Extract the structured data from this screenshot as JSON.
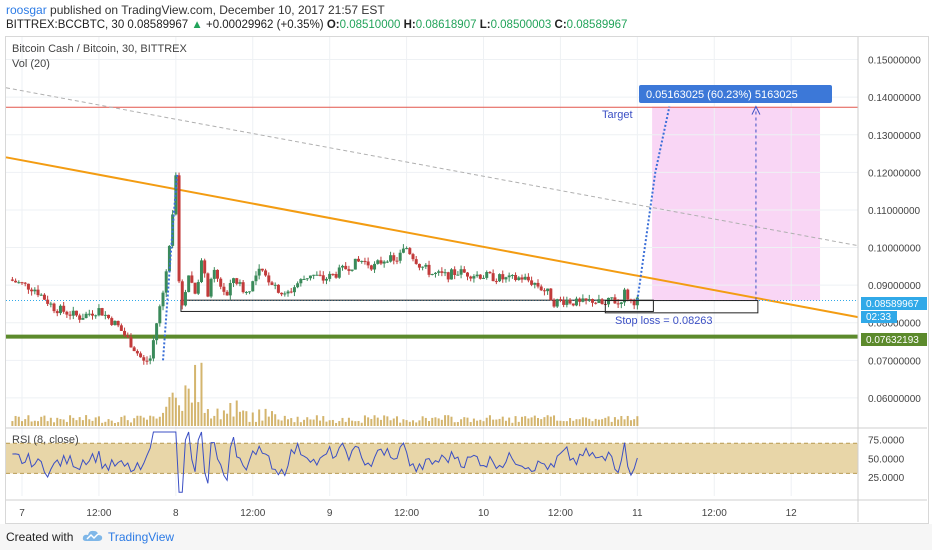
{
  "header": {
    "author": "roosgar",
    "published_text": "published on TradingView.com, December 10, 2017 21:57 EST",
    "symbol": "BITTREX:BCCBTC, 30",
    "last": "0.08589967",
    "change": "+0.00029962 (+0.35%)",
    "o_label": "O:",
    "o_val": "0.08510000",
    "h_label": "H:",
    "h_val": "0.08618907",
    "l_label": "L:",
    "l_val": "0.08500003",
    "c_label": "C:",
    "c_val": "0.08589967"
  },
  "footer": {
    "created_with": "Created with",
    "brand": "TradingView"
  },
  "chart_data": [
    {
      "type": "candlestick",
      "title": "Bitcoin Cash / Bitcoin, 30, BITTREX",
      "indicator": "Vol (20)",
      "y_ticks": [
        "0.15000000",
        "0.14000000",
        "0.13000000",
        "0.12000000",
        "0.11000000",
        "0.10000000",
        "0.09000000",
        "0.08000000",
        "0.07000000",
        "0.06000000"
      ],
      "y_tick_values": [
        0.15,
        0.14,
        0.13,
        0.12,
        0.11,
        0.1,
        0.09,
        0.08,
        0.07,
        0.06
      ],
      "ylim": [
        0.052,
        0.156
      ],
      "x_ticks": [
        "7",
        "12:00",
        "8",
        "12:00",
        "9",
        "12:00",
        "10",
        "12:00",
        "11",
        "12:00",
        "12"
      ],
      "x_tick_times": [
        0,
        12,
        24,
        36,
        48,
        60,
        72,
        84,
        96,
        108,
        120
      ],
      "x_unit": "hours since Dec 7 00:00",
      "current_price": "0.08589967",
      "countdown": "02:33",
      "support_price": "0.07632193",
      "resistance_price": 0.1373,
      "stop_loss_label": "Stop loss = 0.08263",
      "target_label": "Target",
      "projection_label": "0.05163025 (60.23%) 5163025",
      "price_path": [
        [
          -2,
          0.0915
        ],
        [
          2,
          0.089
        ],
        [
          5,
          0.084
        ],
        [
          9,
          0.0815
        ],
        [
          12,
          0.0835
        ],
        [
          15,
          0.079
        ],
        [
          17,
          0.0745
        ],
        [
          19,
          0.0695
        ],
        [
          20,
          0.0705
        ],
        [
          21,
          0.08
        ],
        [
          22,
          0.088
        ],
        [
          23,
          0.1
        ],
        [
          24,
          0.12
        ],
        [
          24.5,
          0.09
        ],
        [
          25,
          0.085
        ],
        [
          26,
          0.093
        ],
        [
          27,
          0.088
        ],
        [
          28,
          0.096
        ],
        [
          29,
          0.088
        ],
        [
          30,
          0.093
        ],
        [
          32,
          0.087
        ],
        [
          33,
          0.092
        ],
        [
          35,
          0.088
        ],
        [
          37,
          0.0935
        ],
        [
          39,
          0.091
        ],
        [
          41,
          0.087
        ],
        [
          43,
          0.0905
        ],
        [
          45,
          0.093
        ],
        [
          47,
          0.0915
        ],
        [
          49,
          0.093
        ],
        [
          51,
          0.095
        ],
        [
          53,
          0.0965
        ],
        [
          55,
          0.095
        ],
        [
          57,
          0.0975
        ],
        [
          58,
          0.096
        ],
        [
          60,
          0.1
        ],
        [
          62,
          0.0955
        ],
        [
          64,
          0.093
        ],
        [
          66,
          0.0925
        ],
        [
          68,
          0.0935
        ],
        [
          70,
          0.093
        ],
        [
          72,
          0.0925
        ],
        [
          74,
          0.092
        ],
        [
          76,
          0.0915
        ],
        [
          78,
          0.092
        ],
        [
          80,
          0.0905
        ],
        [
          82,
          0.088
        ],
        [
          83,
          0.0855
        ],
        [
          85,
          0.086
        ],
        [
          87,
          0.085
        ],
        [
          89,
          0.086
        ],
        [
          91,
          0.0845
        ],
        [
          92,
          0.0865
        ],
        [
          93,
          0.085
        ],
        [
          94,
          0.088
        ],
        [
          95,
          0.0858
        ],
        [
          96,
          0.0859
        ]
      ],
      "overlay": {
        "stop_loss_value": 0.08263,
        "entry_value": 0.0859,
        "target_value": 0.1375
      }
    },
    {
      "type": "line",
      "title": "RSI (8, close)",
      "y_ticks": [
        "75.0000",
        "50.0000",
        "25.0000"
      ],
      "y_tick_values": [
        75,
        50,
        25
      ],
      "ylim": [
        0,
        85
      ],
      "band": [
        30,
        70
      ],
      "last": 50.5
    }
  ]
}
